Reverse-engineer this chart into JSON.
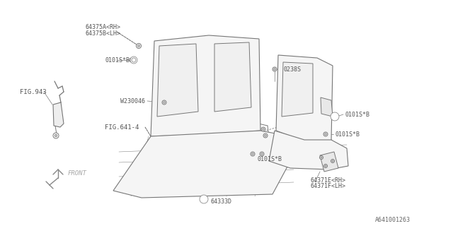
{
  "bg_color": "#ffffff",
  "lc": "#777777",
  "tc": "#555555",
  "fs": 6.0,
  "fs_fig": 6.5,
  "bottom_ref": "A641001263",
  "labels": {
    "fig943": "FIG.943",
    "fig641": "FIG.641-4",
    "part_64375A": "64375A<RH>",
    "part_64375B": "64375B<LH>",
    "part_0101S_top": "0101S*B",
    "part_W230046": "W230046",
    "part_0238S": "0238S",
    "part_0101S_right1": "0101S*B",
    "part_0101S_right2": "0101S*B",
    "part_0101S_center": "0101S*B",
    "part_64333D": "64333D",
    "part_64371E": "64371E<RH>",
    "part_64371F": "64371F<LH>",
    "front_label": "FRONT"
  }
}
